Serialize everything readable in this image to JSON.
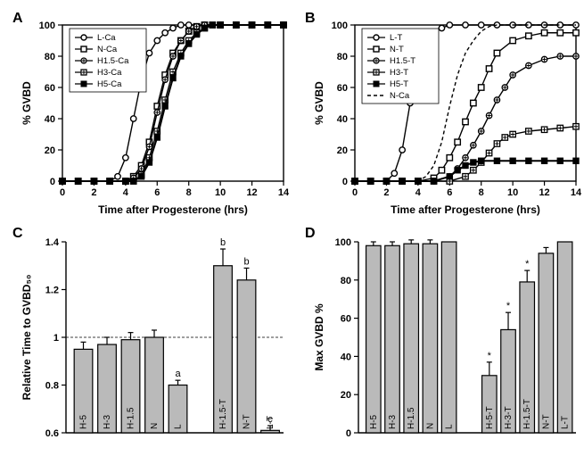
{
  "panelA": {
    "label": "A",
    "type": "line",
    "xlabel": "Time after Progesterone (hrs)",
    "ylabel": "% GVBD",
    "xlim": [
      0,
      14
    ],
    "ylim": [
      0,
      100
    ],
    "xticks": [
      0,
      2,
      4,
      6,
      8,
      10,
      12,
      14
    ],
    "yticks": [
      0,
      20,
      40,
      60,
      80,
      100
    ],
    "background_color": "#ffffff",
    "series": [
      {
        "name": "L-Ca",
        "marker": "open-circle",
        "color": "#000000",
        "x": [
          0,
          1,
          2,
          3,
          3.5,
          4,
          4.5,
          5,
          5.5,
          6,
          6.5,
          7,
          7.5,
          8,
          9,
          10,
          11,
          12,
          13,
          14
        ],
        "y": [
          0,
          0,
          0,
          0,
          3,
          15,
          40,
          65,
          82,
          90,
          95,
          98,
          100,
          100,
          100,
          100,
          100,
          100,
          100,
          100
        ]
      },
      {
        "name": "N-Ca",
        "marker": "open-square",
        "color": "#000000",
        "x": [
          0,
          1,
          2,
          3,
          4,
          4.5,
          5,
          5.5,
          6,
          6.5,
          7,
          7.5,
          8,
          8.5,
          9,
          10,
          11,
          12,
          13,
          14
        ],
        "y": [
          0,
          0,
          0,
          0,
          0,
          3,
          10,
          25,
          48,
          68,
          82,
          90,
          96,
          99,
          100,
          100,
          100,
          100,
          100,
          100
        ]
      },
      {
        "name": "H1.5-Ca",
        "marker": "cross-circle",
        "color": "#000000",
        "x": [
          0,
          1,
          2,
          3,
          4,
          4.5,
          5,
          5.5,
          6,
          6.5,
          7,
          7.5,
          8,
          8.5,
          9,
          10,
          11,
          12,
          13,
          14
        ],
        "y": [
          0,
          0,
          0,
          0,
          0,
          2,
          8,
          22,
          44,
          65,
          80,
          90,
          96,
          99,
          100,
          100,
          100,
          100,
          100,
          100
        ]
      },
      {
        "name": "H3-Ca",
        "marker": "cross-square",
        "color": "#000000",
        "x": [
          0,
          1,
          2,
          3,
          4,
          4.5,
          5,
          5.5,
          6,
          6.5,
          7,
          7.5,
          8,
          8.5,
          9,
          9.5,
          10,
          11,
          12,
          13,
          14
        ],
        "y": [
          0,
          0,
          0,
          0,
          0,
          0,
          4,
          15,
          32,
          52,
          70,
          82,
          90,
          95,
          98,
          100,
          100,
          100,
          100,
          100,
          100
        ]
      },
      {
        "name": "H5-Ca",
        "marker": "filled-square",
        "color": "#000000",
        "x": [
          0,
          1,
          2,
          3,
          4,
          4.5,
          5,
          5.5,
          6,
          6.5,
          7,
          7.5,
          8,
          8.5,
          9,
          9.5,
          10,
          11,
          12,
          13,
          14
        ],
        "y": [
          0,
          0,
          0,
          0,
          0,
          0,
          3,
          12,
          28,
          48,
          66,
          80,
          88,
          94,
          98,
          100,
          100,
          100,
          100,
          100,
          100
        ]
      }
    ],
    "legend_position": "top-left"
  },
  "panelB": {
    "label": "B",
    "type": "line",
    "xlabel": "Time after Progesterone (hrs)",
    "ylabel": "% GVBD",
    "xlim": [
      0,
      14
    ],
    "ylim": [
      0,
      100
    ],
    "xticks": [
      0,
      2,
      4,
      6,
      8,
      10,
      12,
      14
    ],
    "yticks": [
      0,
      20,
      40,
      60,
      80,
      100
    ],
    "background_color": "#ffffff",
    "series": [
      {
        "name": "L-T",
        "marker": "open-circle",
        "color": "#000000",
        "x": [
          0,
          1,
          2,
          2.5,
          3,
          3.5,
          4,
          4.5,
          5,
          5.5,
          6,
          7,
          8,
          9,
          10,
          11,
          12,
          13,
          14
        ],
        "y": [
          0,
          0,
          0,
          5,
          20,
          50,
          75,
          88,
          95,
          98,
          100,
          100,
          100,
          100,
          100,
          100,
          100,
          100,
          100
        ]
      },
      {
        "name": "N-T",
        "marker": "open-square",
        "color": "#000000",
        "x": [
          0,
          1,
          2,
          3,
          4,
          5,
          5.5,
          6,
          6.5,
          7,
          7.5,
          8,
          8.5,
          9,
          10,
          11,
          12,
          13,
          14
        ],
        "y": [
          0,
          0,
          0,
          0,
          0,
          2,
          7,
          15,
          25,
          38,
          50,
          60,
          72,
          82,
          90,
          93,
          95,
          95,
          95
        ]
      },
      {
        "name": "H1.5-T",
        "marker": "cross-circle",
        "color": "#000000",
        "x": [
          0,
          1,
          2,
          3,
          4,
          5,
          6,
          6.5,
          7,
          7.5,
          8,
          8.5,
          9,
          9.5,
          10,
          11,
          12,
          13,
          14
        ],
        "y": [
          0,
          0,
          0,
          0,
          0,
          0,
          3,
          8,
          15,
          23,
          32,
          42,
          52,
          60,
          68,
          74,
          78,
          80,
          80
        ]
      },
      {
        "name": "H3-T",
        "marker": "cross-square",
        "color": "#000000",
        "x": [
          0,
          1,
          2,
          3,
          4,
          5,
          6,
          7,
          7.5,
          8,
          8.5,
          9,
          9.5,
          10,
          11,
          12,
          13,
          14
        ],
        "y": [
          0,
          0,
          0,
          0,
          0,
          0,
          0,
          3,
          7,
          12,
          18,
          24,
          28,
          30,
          32,
          33,
          34,
          35
        ]
      },
      {
        "name": "H5-T",
        "marker": "filled-square",
        "color": "#000000",
        "x": [
          0,
          1,
          2,
          3,
          4,
          5,
          6,
          6.5,
          7,
          7.5,
          8,
          9,
          10,
          11,
          12,
          13,
          14
        ],
        "y": [
          0,
          0,
          0,
          0,
          0,
          0,
          3,
          7,
          10,
          12,
          13,
          13,
          13,
          13,
          13,
          13,
          13
        ]
      },
      {
        "name": "N-Ca",
        "marker": "dash",
        "color": "#000000",
        "dash": true,
        "x": [
          0,
          1,
          2,
          3,
          4,
          4.5,
          5,
          5.5,
          6,
          6.5,
          7,
          7.5,
          8,
          8.5,
          9,
          10,
          11,
          12,
          13,
          14
        ],
        "y": [
          0,
          0,
          0,
          0,
          0,
          3,
          10,
          25,
          48,
          68,
          82,
          90,
          96,
          99,
          100,
          100,
          100,
          100,
          100,
          100
        ]
      }
    ],
    "legend_position": "top-left"
  },
  "panelC": {
    "label": "C",
    "type": "bar",
    "ylabel": "Relative Time to GVBD₅₀",
    "ylim": [
      0.6,
      1.4
    ],
    "yticks": [
      0.6,
      0.8,
      1.0,
      1.2,
      1.4
    ],
    "refline": 1.0,
    "bar_color": "#bababa",
    "bar_border": "#000000",
    "groups": [
      {
        "cats": [
          "H-5",
          "H-3",
          "H-1.5",
          "N",
          "L"
        ],
        "vals": [
          0.95,
          0.97,
          0.99,
          1.0,
          0.8
        ],
        "err": [
          0.03,
          0.03,
          0.03,
          0.03,
          0.02
        ],
        "ann": [
          "",
          "",
          "",
          "",
          "a"
        ]
      },
      {
        "cats": [
          "H-1.5-T",
          "N-T",
          "L-T"
        ],
        "vals": [
          1.3,
          1.24,
          0.61
        ],
        "err": [
          0.07,
          0.05,
          0.02
        ],
        "ann": [
          "b",
          "b",
          "c"
        ]
      }
    ]
  },
  "panelD": {
    "label": "D",
    "type": "bar",
    "ylabel": "Max GVBD %",
    "ylim": [
      0,
      100
    ],
    "yticks": [
      0,
      20,
      40,
      60,
      80,
      100
    ],
    "bar_color": "#bababa",
    "bar_border": "#000000",
    "groups": [
      {
        "cats": [
          "H-5",
          "H-3",
          "H-1.5",
          "N",
          "L"
        ],
        "vals": [
          98,
          98,
          99,
          99,
          100
        ],
        "err": [
          2,
          2,
          2,
          2,
          0
        ],
        "ann": [
          "",
          "",
          "",
          "",
          ""
        ]
      },
      {
        "cats": [
          "H-5-T",
          "H-3-T",
          "H-1.5-T",
          "N-T",
          "L-T"
        ],
        "vals": [
          30,
          54,
          79,
          94,
          100
        ],
        "err": [
          7,
          9,
          6,
          3,
          0
        ],
        "ann": [
          "*",
          "*",
          "*",
          "",
          ""
        ]
      }
    ]
  }
}
